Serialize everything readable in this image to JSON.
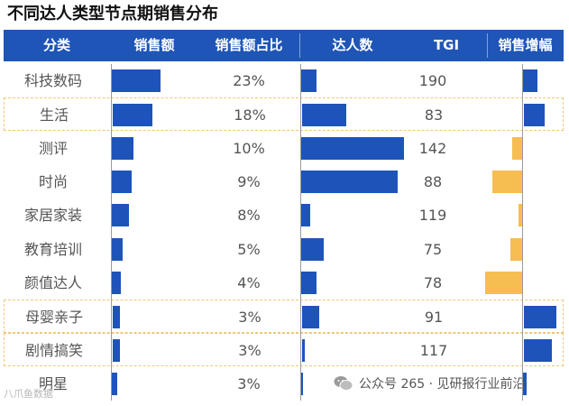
{
  "title": "不同达人类型节点期销售分布",
  "columns": [
    "分类",
    "销售额",
    "销售额占比",
    "达人数",
    "TGI",
    "销售增幅"
  ],
  "footer": {
    "text": "公众号 265 · 见研报行业前沿",
    "icon": "wechat-icon"
  },
  "watermark_corner": "八爪鱼数据",
  "colors": {
    "header_bg": "#1f55b6",
    "bar_blue": "#1e54b9",
    "bar_orange": "#f6bd50",
    "highlight_border": "#efc77a"
  },
  "chart_data": {
    "type": "table",
    "title": "不同达人类型节点期销售分布",
    "rows": [
      {
        "category": "科技数码",
        "sales_bar": 0.68,
        "share": "23%",
        "influencers_bar": 0.15,
        "tgi": "190",
        "growth": 0.45,
        "highlighted": false
      },
      {
        "category": "生活",
        "sales_bar": 0.55,
        "share": "18%",
        "influencers_bar": 0.43,
        "tgi": "83",
        "growth": 0.65,
        "highlighted": true
      },
      {
        "category": "测评",
        "sales_bar": 0.3,
        "share": "10%",
        "influencers_bar": 1.0,
        "tgi": "142",
        "growth": -0.35,
        "highlighted": false
      },
      {
        "category": "时尚",
        "sales_bar": 0.27,
        "share": "9%",
        "influencers_bar": 0.94,
        "tgi": "88",
        "growth": -1.0,
        "highlighted": false
      },
      {
        "category": "家居家装",
        "sales_bar": 0.24,
        "share": "8%",
        "influencers_bar": 0.09,
        "tgi": "119",
        "growth": -0.15,
        "highlighted": false
      },
      {
        "category": "教育培训",
        "sales_bar": 0.15,
        "share": "5%",
        "influencers_bar": 0.22,
        "tgi": "75",
        "growth": -0.42,
        "highlighted": false
      },
      {
        "category": "颜值达人",
        "sales_bar": 0.12,
        "share": "4%",
        "influencers_bar": 0.15,
        "tgi": "78",
        "growth": -1.25,
        "highlighted": false
      },
      {
        "category": "母婴亲子",
        "sales_bar": 0.1,
        "share": "3%",
        "influencers_bar": 0.17,
        "tgi": "91",
        "growth": 1.0,
        "highlighted": true
      },
      {
        "category": "剧情搞笑",
        "sales_bar": 0.1,
        "share": "3%",
        "influencers_bar": 0.03,
        "tgi": "117",
        "growth": 0.85,
        "highlighted": true
      },
      {
        "category": "明星",
        "sales_bar": 0.08,
        "share": "3%",
        "influencers_bar": 0.01,
        "tgi": "",
        "growth": 0.12,
        "highlighted": false
      }
    ]
  }
}
